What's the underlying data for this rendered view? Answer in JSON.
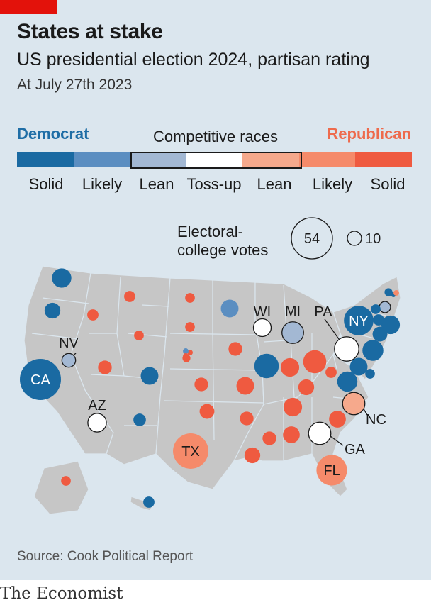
{
  "header": {
    "title": "States at stake",
    "subtitle": "US presidential election 2024, partisan rating",
    "date": "At July 27th 2023"
  },
  "legend": {
    "democrat_label": "Democrat",
    "competitive_label": "Competitive races",
    "republican_label": "Republican",
    "ratings": [
      "Solid",
      "Likely",
      "Lean",
      "Toss-up",
      "Lean",
      "Likely",
      "Solid"
    ],
    "colors": [
      "#1a6aa2",
      "#5b8ec1",
      "#a3b8d3",
      "#ffffff",
      "#f6a98c",
      "#f58a6a",
      "#ef5a40"
    ],
    "size_label": "Electoral-college votes",
    "size_values": [
      54,
      10
    ]
  },
  "source": "Source: Cook Political Report",
  "logo": "The Economist",
  "chart_data": {
    "type": "proportional-symbol-map",
    "rating_scale": [
      "D-Solid",
      "D-Likely",
      "D-Lean",
      "Toss-up",
      "R-Lean",
      "R-Likely",
      "R-Solid"
    ],
    "states": [
      {
        "state": "WA",
        "votes": 12,
        "rating": "D-Solid"
      },
      {
        "state": "OR",
        "votes": 8,
        "rating": "D-Solid"
      },
      {
        "state": "CA",
        "votes": 54,
        "rating": "D-Solid",
        "label": "CA"
      },
      {
        "state": "NV",
        "votes": 6,
        "rating": "D-Lean",
        "label": "NV"
      },
      {
        "state": "ID",
        "votes": 4,
        "rating": "R-Solid"
      },
      {
        "state": "MT",
        "votes": 4,
        "rating": "R-Solid"
      },
      {
        "state": "WY",
        "votes": 3,
        "rating": "R-Solid"
      },
      {
        "state": "UT",
        "votes": 6,
        "rating": "R-Solid"
      },
      {
        "state": "AZ",
        "votes": 11,
        "rating": "Toss-up",
        "label": "AZ"
      },
      {
        "state": "CO",
        "votes": 10,
        "rating": "D-Solid"
      },
      {
        "state": "NM",
        "votes": 5,
        "rating": "D-Solid"
      },
      {
        "state": "ND",
        "votes": 3,
        "rating": "R-Solid"
      },
      {
        "state": "SD",
        "votes": 3,
        "rating": "R-Solid"
      },
      {
        "state": "NE",
        "votes": 2,
        "rating": "R-Solid"
      },
      {
        "state": "NE-1",
        "votes": 1,
        "rating": "R-Solid"
      },
      {
        "state": "NE-2",
        "votes": 1,
        "rating": "D-Likely"
      },
      {
        "state": "NE-3",
        "votes": 1,
        "rating": "R-Solid"
      },
      {
        "state": "KS",
        "votes": 6,
        "rating": "R-Solid"
      },
      {
        "state": "OK",
        "votes": 7,
        "rating": "R-Solid"
      },
      {
        "state": "TX",
        "votes": 40,
        "rating": "R-Likely",
        "label": "TX"
      },
      {
        "state": "MN",
        "votes": 10,
        "rating": "D-Likely"
      },
      {
        "state": "IA",
        "votes": 6,
        "rating": "R-Solid"
      },
      {
        "state": "MO",
        "votes": 10,
        "rating": "R-Solid"
      },
      {
        "state": "AR",
        "votes": 6,
        "rating": "R-Solid"
      },
      {
        "state": "LA",
        "votes": 8,
        "rating": "R-Solid"
      },
      {
        "state": "WI",
        "votes": 10,
        "rating": "Toss-up",
        "label": "WI"
      },
      {
        "state": "IL",
        "votes": 19,
        "rating": "D-Solid"
      },
      {
        "state": "MI",
        "votes": 15,
        "rating": "D-Lean",
        "label": "MI"
      },
      {
        "state": "IN",
        "votes": 11,
        "rating": "R-Solid"
      },
      {
        "state": "OH",
        "votes": 17,
        "rating": "R-Solid"
      },
      {
        "state": "KY",
        "votes": 8,
        "rating": "R-Solid"
      },
      {
        "state": "TN",
        "votes": 11,
        "rating": "R-Solid"
      },
      {
        "state": "MS",
        "votes": 6,
        "rating": "R-Solid"
      },
      {
        "state": "AL",
        "votes": 9,
        "rating": "R-Solid"
      },
      {
        "state": "GA",
        "votes": 16,
        "rating": "Toss-up",
        "label": "GA"
      },
      {
        "state": "FL",
        "votes": 30,
        "rating": "R-Likely",
        "label": "FL"
      },
      {
        "state": "SC",
        "votes": 9,
        "rating": "R-Solid"
      },
      {
        "state": "NC",
        "votes": 16,
        "rating": "R-Lean",
        "label": "NC"
      },
      {
        "state": "WV",
        "votes": 4,
        "rating": "R-Solid"
      },
      {
        "state": "VA",
        "votes": 13,
        "rating": "D-Solid"
      },
      {
        "state": "PA",
        "votes": 19,
        "rating": "Toss-up",
        "label": "PA"
      },
      {
        "state": "NY",
        "votes": 28,
        "rating": "D-Solid",
        "label": "NY"
      },
      {
        "state": "NJ",
        "votes": 14,
        "rating": "D-Solid"
      },
      {
        "state": "DE",
        "votes": 3,
        "rating": "D-Solid"
      },
      {
        "state": "MD",
        "votes": 10,
        "rating": "D-Solid"
      },
      {
        "state": "CT",
        "votes": 7,
        "rating": "D-Solid"
      },
      {
        "state": "MA",
        "votes": 11,
        "rating": "D-Solid"
      },
      {
        "state": "RI",
        "votes": 4,
        "rating": "D-Solid"
      },
      {
        "state": "VT",
        "votes": 3,
        "rating": "D-Solid"
      },
      {
        "state": "NH",
        "votes": 4,
        "rating": "D-Lean"
      },
      {
        "state": "ME",
        "votes": 2,
        "rating": "D-Solid"
      },
      {
        "state": "ME-1",
        "votes": 1,
        "rating": "D-Solid"
      },
      {
        "state": "ME-2",
        "votes": 1,
        "rating": "R-Likely"
      },
      {
        "state": "AK",
        "votes": 3,
        "rating": "R-Solid"
      },
      {
        "state": "HI",
        "votes": 4,
        "rating": "D-Solid"
      }
    ]
  }
}
